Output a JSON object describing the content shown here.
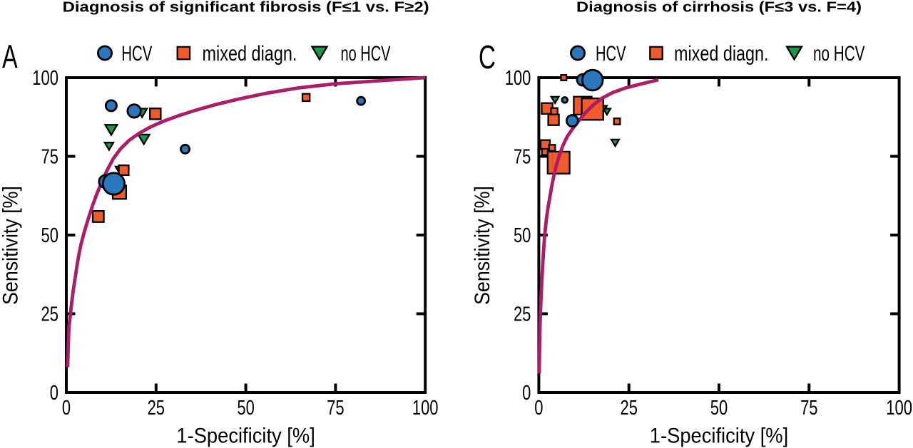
{
  "figure": {
    "kind": "summary ROC scatter plots",
    "background": "#ffffff"
  },
  "colors": {
    "hcv": "#2b77be",
    "mixed": "#f15b2b",
    "no_hcv": "#149a48",
    "curve": "#a91e64",
    "frame": "#000000",
    "text": "#000000"
  },
  "axes": {
    "x_label": "1-Specificity [%]",
    "y_label": "Sensitivity [%]",
    "x_ticks": [
      0,
      25,
      50,
      75,
      100
    ],
    "y_ticks": [
      0,
      25,
      50,
      75,
      100
    ],
    "xlim": [
      0,
      100
    ],
    "ylim": [
      0,
      100
    ]
  },
  "legend": {
    "items": [
      {
        "key": "hcv",
        "label": "HCV",
        "marker": "circle"
      },
      {
        "key": "mixed",
        "label": "mixed diagn.",
        "marker": "square"
      },
      {
        "key": "no_hcv",
        "label": "no HCV",
        "marker": "triangle-down"
      }
    ]
  },
  "chart_data": [
    {
      "type": "scatter",
      "panel_label": "A",
      "title": "Diagnosis of significant fibrosis (F≤1 vs. F≥2)",
      "xlabel": "1-Specificity [%]",
      "ylabel": "Sensitivity [%]",
      "xlim": [
        0,
        100
      ],
      "ylim": [
        0,
        100
      ],
      "series": [
        {
          "name": "HCV",
          "marker": "circle",
          "color_key": "hcv",
          "points": [
            {
              "x": 10.9,
              "y": 67.0,
              "s": 9.0
            },
            {
              "x": 12.5,
              "y": 91.1,
              "s": 7.6
            },
            {
              "x": 18.9,
              "y": 89.4,
              "s": 9.2
            },
            {
              "x": 33.1,
              "y": 77.3,
              "s": 6.1
            },
            {
              "x": 13.2,
              "y": 66.3,
              "s": 15.2
            },
            {
              "x": 82.1,
              "y": 92.6,
              "s": 5.5
            }
          ]
        },
        {
          "name": "mixed diagn.",
          "marker": "square",
          "color_key": "mixed",
          "points": [
            {
              "x": 24.8,
              "y": 88.5,
              "s": 7.6
            },
            {
              "x": 16.0,
              "y": 70.6,
              "s": 6.9
            },
            {
              "x": 14.8,
              "y": 63.6,
              "s": 9.4
            },
            {
              "x": 8.9,
              "y": 55.9,
              "s": 7.8
            },
            {
              "x": 66.8,
              "y": 93.7,
              "s": 5.1
            }
          ]
        },
        {
          "name": "no HCV",
          "marker": "triangle-down",
          "color_key": "no_hcv",
          "points": [
            {
              "x": 12.5,
              "y": 83.4,
              "s": 8.4
            },
            {
              "x": 11.9,
              "y": 78.2,
              "s": 6.1
            },
            {
              "x": 21.6,
              "y": 80.4,
              "s": 7.9
            },
            {
              "x": 15.0,
              "y": 70.5,
              "s": 6.5
            },
            {
              "x": 21.1,
              "y": 88.8,
              "s": 7.0
            }
          ]
        }
      ],
      "curve": {
        "name": "summary ROC curve",
        "color_key": "curve",
        "points": [
          [
            0.35,
            8.0
          ],
          [
            0.4,
            9.74
          ],
          [
            0.47,
            11.9
          ],
          [
            0.54,
            14.57
          ],
          [
            0.63,
            17.95
          ],
          [
            0.72,
            20.32
          ],
          [
            0.84,
            21.9
          ],
          [
            0.97,
            23.23
          ],
          [
            1.12,
            24.66
          ],
          [
            1.29,
            26.47
          ],
          [
            1.49,
            28.54
          ],
          [
            1.72,
            30.7
          ],
          [
            1.99,
            32.87
          ],
          [
            2.31,
            35.2
          ],
          [
            2.66,
            37.94
          ],
          [
            3.08,
            41.09
          ],
          [
            3.56,
            44.14
          ],
          [
            4.12,
            47.14
          ],
          [
            4.76,
            50.05
          ],
          [
            5.5,
            52.92
          ],
          [
            6.36,
            56.04
          ],
          [
            7.35,
            59.52
          ],
          [
            8.5,
            63.11
          ],
          [
            9.83,
            66.8
          ],
          [
            11.36,
            70.6
          ],
          [
            13.13,
            74.36
          ],
          [
            15.18,
            77.49
          ],
          [
            17.55,
            80.14
          ],
          [
            20.29,
            82.34
          ],
          [
            23.46,
            84.34
          ],
          [
            27.12,
            86.18
          ],
          [
            31.35,
            87.95
          ],
          [
            36.24,
            89.72
          ],
          [
            41.9,
            91.51
          ],
          [
            48.43,
            93.3
          ],
          [
            55.99,
            95.09
          ],
          [
            64.73,
            96.75
          ],
          [
            74.83,
            98.03
          ],
          [
            86.5,
            98.96
          ],
          [
            100.0,
            100.0
          ]
        ]
      }
    },
    {
      "type": "scatter",
      "panel_label": "C",
      "title": "Diagnosis of cirrhosis (F≤3 vs. F=4)",
      "xlabel": "1-Specificity [%]",
      "ylabel": "Sensitivity [%]",
      "xlim": [
        0,
        100
      ],
      "ylim": [
        0,
        100
      ],
      "series": [
        {
          "name": "HCV",
          "marker": "circle",
          "color_key": "hcv",
          "points": [
            {
              "x": 12.2,
              "y": 99.3,
              "s": 8.0
            },
            {
              "x": 14.9,
              "y": 99.2,
              "s": 14.4
            },
            {
              "x": 7.2,
              "y": 92.9,
              "s": 3.9
            },
            {
              "x": 9.3,
              "y": 86.3,
              "s": 8.0
            }
          ]
        },
        {
          "name": "mixed diagn.",
          "marker": "square",
          "color_key": "mixed",
          "points": [
            {
              "x": 6.9,
              "y": 100.0,
              "s": 3.8
            },
            {
              "x": 12.2,
              "y": 91.1,
              "s": 12.6
            },
            {
              "x": 14.9,
              "y": 90.0,
              "s": 15.1
            },
            {
              "x": 2.3,
              "y": 90.2,
              "s": 7.6
            },
            {
              "x": 4.3,
              "y": 89.3,
              "s": 4.6
            },
            {
              "x": 4.1,
              "y": 86.6,
              "s": 7.5
            },
            {
              "x": 21.7,
              "y": 86.1,
              "s": 4.3
            },
            {
              "x": 1.8,
              "y": 78.7,
              "s": 6.5
            },
            {
              "x": 3.7,
              "y": 77.7,
              "s": 4.3
            },
            {
              "x": 1.7,
              "y": 76.4,
              "s": 4.3
            },
            {
              "x": 5.5,
              "y": 73.0,
              "s": 15.4
            }
          ]
        },
        {
          "name": "no HCV",
          "marker": "triangle-down",
          "color_key": "no_hcv",
          "points": [
            {
              "x": 4.5,
              "y": 92.9,
              "s": 5.2
            },
            {
              "x": 17.9,
              "y": 90.1,
              "s": 5.0
            },
            {
              "x": 18.9,
              "y": 89.2,
              "s": 5.0
            },
            {
              "x": 21.2,
              "y": 79.3,
              "s": 5.4
            }
          ]
        }
      ],
      "curve": {
        "name": "summary ROC curve",
        "color_key": "curve",
        "points": [
          [
            0.12,
            6.0
          ],
          [
            0.14,
            8.28
          ],
          [
            0.17,
            10.63
          ],
          [
            0.19,
            13.06
          ],
          [
            0.23,
            15.62
          ],
          [
            0.27,
            18.27
          ],
          [
            0.31,
            20.66
          ],
          [
            0.37,
            22.7
          ],
          [
            0.43,
            24.71
          ],
          [
            0.51,
            26.94
          ],
          [
            0.6,
            29.29
          ],
          [
            0.7,
            31.87
          ],
          [
            0.82,
            34.81
          ],
          [
            0.97,
            38.21
          ],
          [
            1.14,
            41.74
          ],
          [
            1.34,
            45.4
          ],
          [
            1.57,
            48.96
          ],
          [
            1.84,
            52.33
          ],
          [
            2.16,
            55.53
          ],
          [
            2.54,
            58.58
          ],
          [
            2.98,
            61.61
          ],
          [
            3.5,
            64.95
          ],
          [
            4.11,
            68.63
          ],
          [
            4.83,
            72.04
          ],
          [
            5.67,
            75.17
          ],
          [
            6.66,
            78.3
          ],
          [
            7.82,
            81.16
          ],
          [
            9.18,
            83.48
          ],
          [
            10.78,
            85.88
          ],
          [
            12.66,
            88.52
          ],
          [
            14.87,
            91.07
          ],
          [
            17.46,
            93.43
          ],
          [
            20.5,
            95.25
          ],
          [
            24.08,
            96.74
          ],
          [
            28.27,
            97.97
          ],
          [
            33.2,
            99.3
          ]
        ]
      }
    }
  ]
}
